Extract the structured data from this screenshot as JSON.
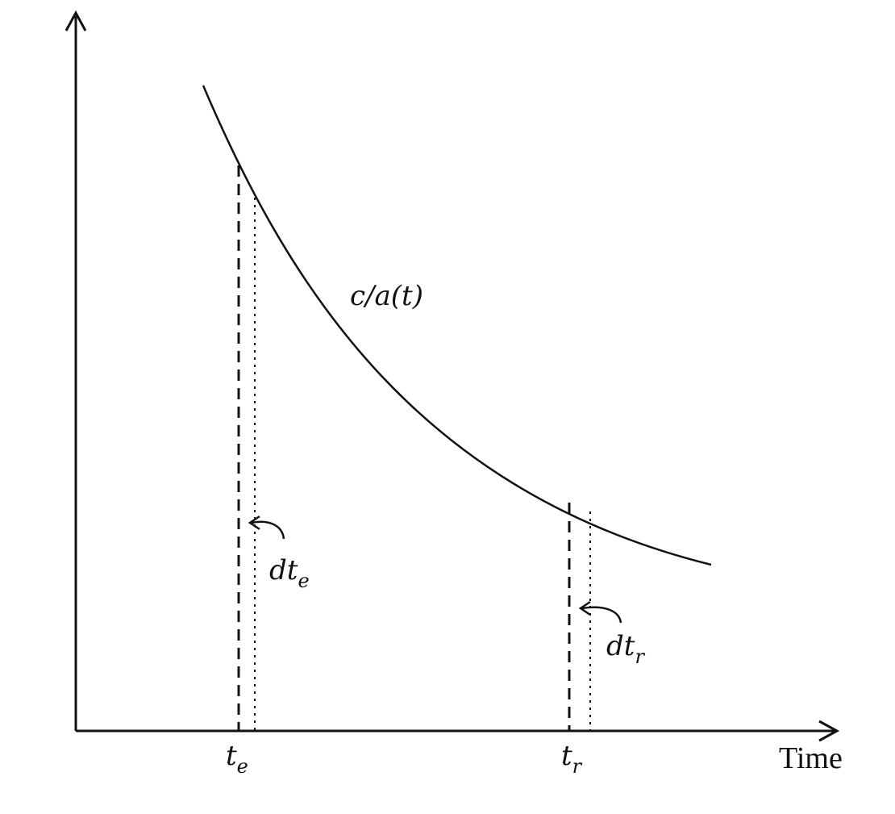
{
  "labels": {
    "curve": "c/a(t)",
    "x_axis": "Time",
    "t_emit": "t",
    "t_emit_sub": "e",
    "t_recv": "t",
    "t_recv_sub": "r",
    "dt_emit": "dt",
    "dt_emit_sub": "e",
    "dt_recv": "dt",
    "dt_recv_sub": "r"
  },
  "colors": {
    "ink": "#111111",
    "background": "#ffffff"
  }
}
